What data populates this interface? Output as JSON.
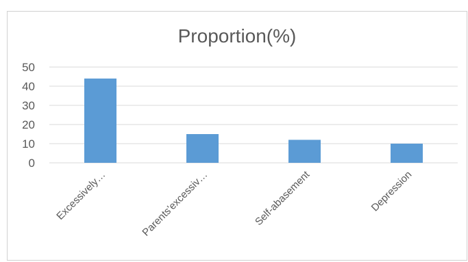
{
  "chart_data": {
    "type": "bar",
    "title": "Proportion(%)",
    "categories": [
      "Excessively…",
      "Parents'excessiv…",
      "Self-abasement",
      "Depression"
    ],
    "values": [
      44,
      15,
      12,
      10
    ],
    "ylim": [
      0,
      50
    ],
    "yticks": [
      0,
      10,
      20,
      30,
      40,
      50
    ],
    "xlabel": "",
    "ylabel": "",
    "grid": true,
    "legend": "none",
    "bar_color": "#5b9bd5",
    "grid_color": "#d9d9d9",
    "text_color": "#595959"
  }
}
